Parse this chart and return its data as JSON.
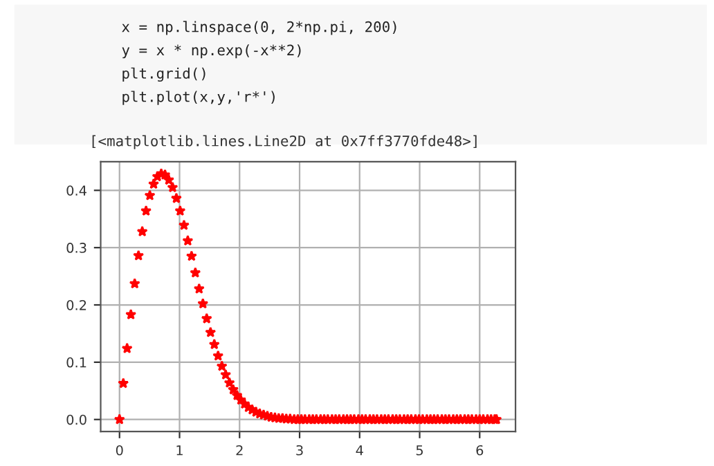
{
  "chart_data": {
    "type": "scatter",
    "annotations": [
      "x = np.linspace(0, 2*np.pi, 200)",
      "y = x * np.exp(-x**2)",
      "plt.grid()",
      "plt.plot(x,y,'r*')",
      "[<matplotlib.lines.Line2D at 0x7ff3770fde48>]"
    ],
    "series": [
      {
        "color": "#ff0000",
        "x": [
          0,
          0.063,
          0.126,
          0.189,
          0.253,
          0.316,
          0.379,
          0.442,
          0.505,
          0.568,
          0.631,
          0.695,
          0.758,
          0.821,
          0.884,
          0.947,
          1.01,
          1.074,
          1.137,
          1.2,
          1.263,
          1.326,
          1.389,
          1.452,
          1.516,
          1.579,
          1.642,
          1.705,
          1.768,
          1.831,
          1.894,
          1.958,
          2.021,
          2.084,
          2.147,
          2.21,
          2.273,
          2.336,
          2.4,
          2.463,
          2.526,
          2.589,
          2.652,
          2.715,
          2.778,
          2.842,
          2.91,
          2.97,
          3.03,
          3.09,
          3.16,
          3.22,
          3.28,
          3.35,
          3.41,
          3.47,
          3.54,
          3.6,
          3.66,
          3.73,
          3.79,
          3.85,
          3.91,
          3.98,
          4.04,
          4.1,
          4.17,
          4.23,
          4.29,
          4.36,
          4.42,
          4.48,
          4.55,
          4.61,
          4.67,
          4.74,
          4.8,
          4.86,
          4.93,
          4.99,
          5.05,
          5.12,
          5.18,
          5.24,
          5.3,
          5.37,
          5.43,
          5.49,
          5.56,
          5.62,
          5.68,
          5.75,
          5.81,
          5.87,
          5.94,
          6.0,
          6.06,
          6.13,
          6.19,
          6.25,
          6.28
        ],
        "values": [
          0,
          0.063,
          0.124,
          0.183,
          0.237,
          0.286,
          0.328,
          0.364,
          0.391,
          0.411,
          0.424,
          0.429,
          0.427,
          0.418,
          0.405,
          0.386,
          0.364,
          0.339,
          0.312,
          0.285,
          0.256,
          0.228,
          0.202,
          0.176,
          0.152,
          0.131,
          0.111,
          0.093,
          0.078,
          0.064,
          0.052,
          0.042,
          0.034,
          0.027,
          0.021,
          0.017,
          0.013,
          0.01,
          0.008,
          0.006,
          0.004,
          0.003,
          0.002,
          0.002,
          0.001,
          0.001,
          0,
          0,
          0,
          0,
          0,
          0,
          0,
          0,
          0,
          0,
          0,
          0,
          0,
          0,
          0,
          0,
          0,
          0,
          0,
          0,
          0,
          0,
          0,
          0,
          0,
          0,
          0,
          0,
          0,
          0,
          0,
          0,
          0,
          0,
          0,
          0,
          0,
          0,
          0,
          0,
          0,
          0,
          0,
          0,
          0,
          0,
          0,
          0,
          0,
          0,
          0,
          0,
          0,
          0,
          0
        ]
      }
    ],
    "xlim": [
      -0.314,
      6.597
    ],
    "ylim": [
      -0.021,
      0.45
    ],
    "xticks": [
      0,
      1,
      2,
      3,
      4,
      5,
      6
    ],
    "yticks": [
      {
        "value": 0,
        "label": "0.0"
      },
      {
        "value": 0.1,
        "label": "0.1"
      },
      {
        "value": 0.2,
        "label": "0.2"
      },
      {
        "value": 0.3,
        "label": "0.3"
      },
      {
        "value": 0.4,
        "label": "0.4"
      }
    ],
    "grid": true,
    "marker": "star",
    "line_style": "none"
  }
}
